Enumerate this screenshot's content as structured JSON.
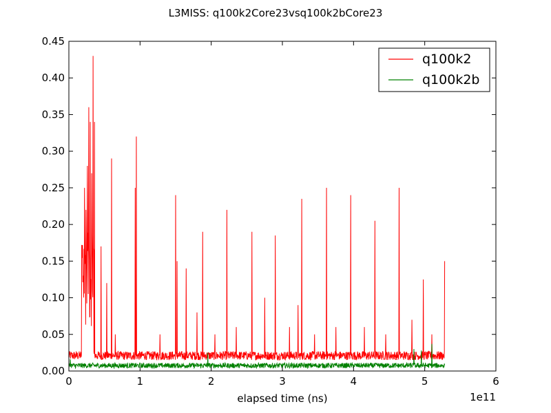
{
  "chart_data": {
    "type": "line",
    "title": "L3MISS: q100k2Core23vsq100k2bCore23",
    "xlabel": "elapsed time (ns)",
    "ylabel": "",
    "x_offset_label": "1e11",
    "xlim": [
      0,
      6
    ],
    "ylim": [
      0,
      0.45
    ],
    "x_ticks": [
      "0",
      "1",
      "2",
      "3",
      "4",
      "5",
      "6"
    ],
    "y_ticks": [
      "0.00",
      "0.05",
      "0.10",
      "0.15",
      "0.20",
      "0.25",
      "0.30",
      "0.35",
      "0.40",
      "0.45"
    ],
    "grid": false,
    "legend_position": "top-right",
    "series": [
      {
        "name": "q100k2",
        "color": "#ff0000",
        "x_end": 5.28,
        "baseline": 0.015,
        "noise": 0.012,
        "burst_range": [
          0.18,
          0.35
        ],
        "peaks": [
          {
            "x": 0.2,
            "y": 0.13
          },
          {
            "x": 0.22,
            "y": 0.25
          },
          {
            "x": 0.24,
            "y": 0.22
          },
          {
            "x": 0.26,
            "y": 0.28
          },
          {
            "x": 0.28,
            "y": 0.36
          },
          {
            "x": 0.3,
            "y": 0.34
          },
          {
            "x": 0.32,
            "y": 0.27
          },
          {
            "x": 0.34,
            "y": 0.43
          },
          {
            "x": 0.36,
            "y": 0.34
          },
          {
            "x": 0.45,
            "y": 0.17
          },
          {
            "x": 0.53,
            "y": 0.12
          },
          {
            "x": 0.6,
            "y": 0.29
          },
          {
            "x": 0.65,
            "y": 0.05
          },
          {
            "x": 0.93,
            "y": 0.25
          },
          {
            "x": 0.95,
            "y": 0.32
          },
          {
            "x": 1.28,
            "y": 0.05
          },
          {
            "x": 1.5,
            "y": 0.24
          },
          {
            "x": 1.52,
            "y": 0.15
          },
          {
            "x": 1.65,
            "y": 0.14
          },
          {
            "x": 1.8,
            "y": 0.08
          },
          {
            "x": 1.88,
            "y": 0.19
          },
          {
            "x": 2.05,
            "y": 0.05
          },
          {
            "x": 2.22,
            "y": 0.22
          },
          {
            "x": 2.35,
            "y": 0.06
          },
          {
            "x": 2.57,
            "y": 0.19
          },
          {
            "x": 2.75,
            "y": 0.1
          },
          {
            "x": 2.9,
            "y": 0.185
          },
          {
            "x": 3.1,
            "y": 0.06
          },
          {
            "x": 3.22,
            "y": 0.09
          },
          {
            "x": 3.27,
            "y": 0.235
          },
          {
            "x": 3.45,
            "y": 0.05
          },
          {
            "x": 3.62,
            "y": 0.25
          },
          {
            "x": 3.75,
            "y": 0.06
          },
          {
            "x": 3.96,
            "y": 0.24
          },
          {
            "x": 4.15,
            "y": 0.06
          },
          {
            "x": 4.3,
            "y": 0.205
          },
          {
            "x": 4.45,
            "y": 0.05
          },
          {
            "x": 4.64,
            "y": 0.25
          },
          {
            "x": 4.82,
            "y": 0.07
          },
          {
            "x": 4.98,
            "y": 0.125
          },
          {
            "x": 5.1,
            "y": 0.05
          },
          {
            "x": 5.28,
            "y": 0.15
          }
        ]
      },
      {
        "name": "q100k2b",
        "color": "#008000",
        "x_end": 5.28,
        "baseline": 0.004,
        "noise": 0.007,
        "burst_range": [
          0,
          0
        ],
        "peaks": [
          {
            "x": 0.02,
            "y": 0.016
          },
          {
            "x": 1.95,
            "y": 0.025
          },
          {
            "x": 4.85,
            "y": 0.03
          },
          {
            "x": 4.95,
            "y": 0.028
          },
          {
            "x": 5.1,
            "y": 0.037
          }
        ]
      }
    ]
  }
}
